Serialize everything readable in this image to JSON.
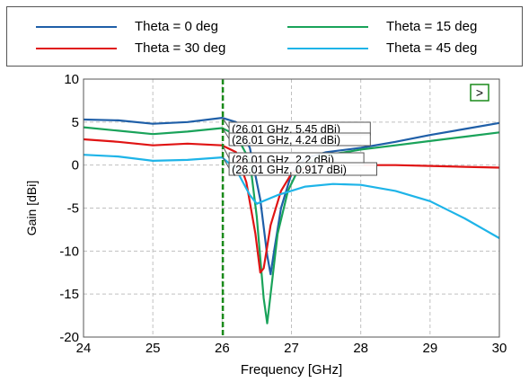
{
  "chart_data": {
    "type": "line",
    "title": "",
    "xlabel": "Frequency [GHz]",
    "ylabel": "Gain [dBi]",
    "xlim": [
      24,
      30
    ],
    "ylim": [
      -20,
      10
    ],
    "x_ticks": [
      "24",
      "25",
      "26",
      "27",
      "28",
      "29",
      "30"
    ],
    "y_ticks": [
      "-20",
      "-15",
      "-10",
      "-5",
      "0",
      "5",
      "10"
    ],
    "grid": true,
    "legend_position": "top",
    "marker_x": 26.01,
    "marker_color": "#1a8a1a",
    "expand_button_label": ">",
    "series": [
      {
        "name": "Theta = 0 deg",
        "color": "#1f5fa8",
        "points": [
          [
            24,
            5.3
          ],
          [
            24.5,
            5.2
          ],
          [
            25,
            4.8
          ],
          [
            25.5,
            5.0
          ],
          [
            26,
            5.5
          ],
          [
            26.2,
            5.0
          ],
          [
            26.4,
            2.0
          ],
          [
            26.55,
            -4.0
          ],
          [
            26.65,
            -10.5
          ],
          [
            26.7,
            -12.7
          ],
          [
            26.75,
            -10.0
          ],
          [
            26.85,
            -5.0
          ],
          [
            27,
            -1.0
          ],
          [
            27.2,
            0.8
          ],
          [
            27.5,
            1.5
          ],
          [
            28,
            2.0
          ],
          [
            28.5,
            2.7
          ],
          [
            29,
            3.5
          ],
          [
            29.5,
            4.2
          ],
          [
            30,
            4.9
          ]
        ]
      },
      {
        "name": "Theta = 15 deg",
        "color": "#1aa35a",
        "points": [
          [
            24,
            4.4
          ],
          [
            24.5,
            4.0
          ],
          [
            25,
            3.6
          ],
          [
            25.5,
            3.9
          ],
          [
            26,
            4.3
          ],
          [
            26.2,
            3.5
          ],
          [
            26.4,
            0.5
          ],
          [
            26.5,
            -6.0
          ],
          [
            26.6,
            -15.5
          ],
          [
            26.65,
            -18.4
          ],
          [
            26.7,
            -15.0
          ],
          [
            26.8,
            -8.0
          ],
          [
            26.95,
            -3.0
          ],
          [
            27.1,
            -0.5
          ],
          [
            27.4,
            1.0
          ],
          [
            28,
            1.8
          ],
          [
            28.5,
            2.3
          ],
          [
            29,
            2.8
          ],
          [
            29.5,
            3.3
          ],
          [
            30,
            3.8
          ]
        ]
      },
      {
        "name": "Theta = 30 deg",
        "color": "#e01414",
        "points": [
          [
            24,
            3.0
          ],
          [
            24.5,
            2.7
          ],
          [
            25,
            2.3
          ],
          [
            25.5,
            2.5
          ],
          [
            26,
            2.3
          ],
          [
            26.2,
            1.5
          ],
          [
            26.35,
            -2.0
          ],
          [
            26.48,
            -8.0
          ],
          [
            26.55,
            -12.5
          ],
          [
            26.6,
            -12.0
          ],
          [
            26.7,
            -7.0
          ],
          [
            26.85,
            -3.0
          ],
          [
            27,
            -1.0
          ],
          [
            27.3,
            0.0
          ],
          [
            27.6,
            0.2
          ],
          [
            28,
            0.0
          ],
          [
            28.5,
            0.0
          ],
          [
            29,
            -0.1
          ],
          [
            29.5,
            -0.2
          ],
          [
            30,
            -0.3
          ]
        ]
      },
      {
        "name": "Theta = 45 deg",
        "color": "#1eb4e8",
        "points": [
          [
            24,
            1.2
          ],
          [
            24.5,
            1.0
          ],
          [
            25,
            0.5
          ],
          [
            25.5,
            0.6
          ],
          [
            26,
            0.9
          ],
          [
            26.2,
            -0.5
          ],
          [
            26.4,
            -3.5
          ],
          [
            26.5,
            -4.5
          ],
          [
            26.8,
            -3.5
          ],
          [
            27.2,
            -2.5
          ],
          [
            27.6,
            -2.2
          ],
          [
            28,
            -2.3
          ],
          [
            28.5,
            -3.0
          ],
          [
            29,
            -4.2
          ],
          [
            29.5,
            -6.2
          ],
          [
            30,
            -8.5
          ]
        ]
      }
    ],
    "annotations": [
      {
        "text": "(26.01 GHz, 5.45 dBi)",
        "x": 26.01,
        "y": 5.45
      },
      {
        "text": "(26.01 GHz, 4.24 dBi)",
        "x": 26.01,
        "y": 4.24
      },
      {
        "text": "(26.01 GHz, 2.2 dBi)",
        "x": 26.01,
        "y": 2.2
      },
      {
        "text": "(26.01 GHz, 0.917 dBi)",
        "x": 26.01,
        "y": 0.917
      }
    ]
  }
}
